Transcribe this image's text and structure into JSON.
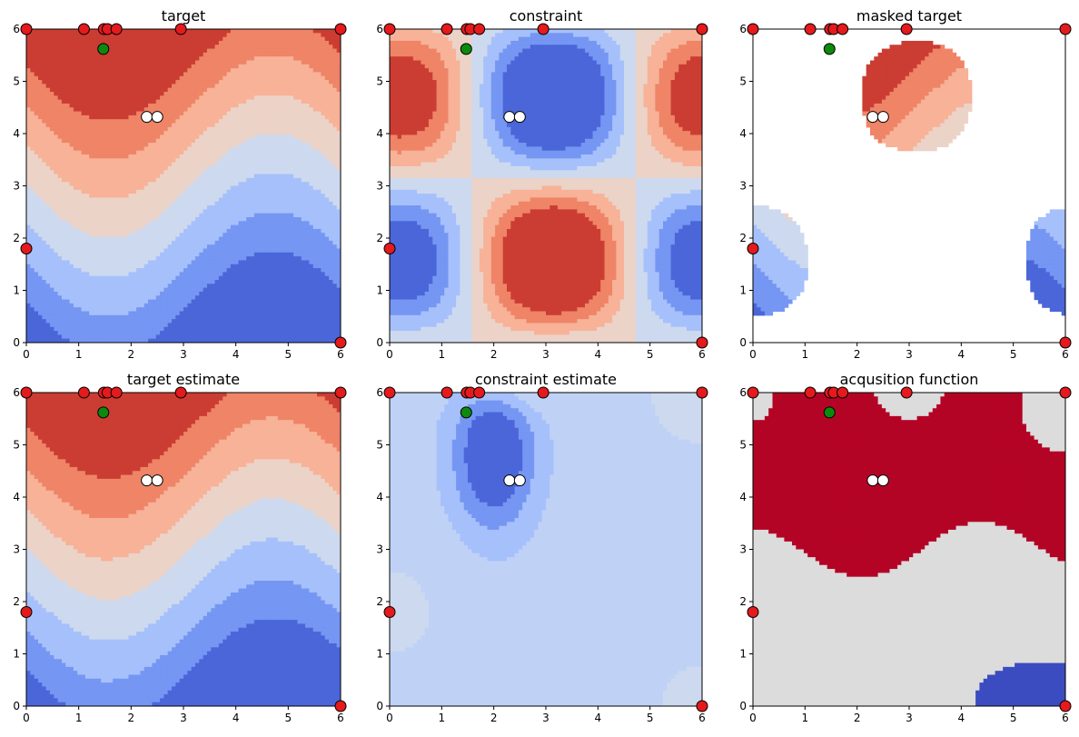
{
  "figure": {
    "layout": {
      "rows": 2,
      "cols": 3
    },
    "colormap": "coolwarm",
    "levels": [
      -1.0,
      -0.75,
      -0.5,
      -0.25,
      0.0,
      0.25,
      0.5,
      0.75,
      1.0
    ],
    "colors": {
      "levels": [
        "#4b66d9",
        "#7596f2",
        "#a6c0fb",
        "#cdd9ee",
        "#ecd3c8",
        "#f7b298",
        "#ef8467",
        "#cb3d33"
      ],
      "red_point": "#e41a1c",
      "green_point": "#0c8a0c",
      "white_point": "#ffffff",
      "acq_true": "#b40426",
      "acq_false": "#dcdcdc",
      "acq_low": "#3b4cc0",
      "constraint_est_fill": "#bfd2f6"
    }
  },
  "chart_data": [
    {
      "type": "contour",
      "name": "target",
      "title": "target",
      "field": "target",
      "xlim": [
        0,
        6
      ],
      "ylim": [
        0,
        6
      ],
      "xticks": [
        "0",
        "1",
        "2",
        "3",
        "4",
        "5",
        "6"
      ],
      "yticks": [
        "0",
        "1",
        "2",
        "3",
        "4",
        "5",
        "6"
      ]
    },
    {
      "type": "contour",
      "name": "constraint",
      "title": "constraint",
      "field": "constraint",
      "xlim": [
        0,
        6
      ],
      "ylim": [
        0,
        6
      ],
      "xticks": [
        "0",
        "1",
        "2",
        "3",
        "4",
        "5",
        "6"
      ],
      "yticks": [
        "0",
        "1",
        "2",
        "3",
        "4",
        "5",
        "6"
      ]
    },
    {
      "type": "contour",
      "name": "masked-target",
      "title": "masked target",
      "field": "masked",
      "xlim": [
        0,
        6
      ],
      "ylim": [
        0,
        6
      ],
      "xticks": [
        "0",
        "1",
        "2",
        "3",
        "4",
        "5",
        "6"
      ],
      "yticks": [
        "0",
        "1",
        "2",
        "3",
        "4",
        "5",
        "6"
      ]
    },
    {
      "type": "contour",
      "name": "target-estimate",
      "title": "target estimate",
      "field": "target_est",
      "xlim": [
        0,
        6
      ],
      "ylim": [
        0,
        6
      ],
      "xticks": [
        "0",
        "1",
        "2",
        "3",
        "4",
        "5",
        "6"
      ],
      "yticks": [
        "0",
        "1",
        "2",
        "3",
        "4",
        "5",
        "6"
      ]
    },
    {
      "type": "contour",
      "name": "constraint-estimate",
      "title": "constraint estimate",
      "field": "constraint_est",
      "xlim": [
        0,
        6
      ],
      "ylim": [
        0,
        6
      ],
      "xticks": [
        "0",
        "1",
        "2",
        "3",
        "4",
        "5",
        "6"
      ],
      "yticks": [
        "0",
        "1",
        "2",
        "3",
        "4",
        "5",
        "6"
      ]
    },
    {
      "type": "contour",
      "name": "acquisition-function",
      "title": "acqusition function",
      "field": "acquisition",
      "xlim": [
        0,
        6
      ],
      "ylim": [
        0,
        6
      ],
      "xticks": [
        "0",
        "1",
        "2",
        "3",
        "4",
        "5",
        "6"
      ],
      "yticks": [
        "0",
        "1",
        "2",
        "3",
        "4",
        "5",
        "6"
      ]
    }
  ],
  "points": {
    "red": [
      [
        0,
        6
      ],
      [
        1.1,
        6
      ],
      [
        1.48,
        6
      ],
      [
        1.55,
        6
      ],
      [
        1.72,
        6
      ],
      [
        2.95,
        6
      ],
      [
        6,
        6
      ],
      [
        0,
        1.8
      ],
      [
        6,
        0
      ]
    ],
    "green": [
      [
        1.47,
        5.62
      ]
    ],
    "white": [
      [
        2.3,
        4.32
      ],
      [
        2.5,
        4.32
      ]
    ]
  }
}
